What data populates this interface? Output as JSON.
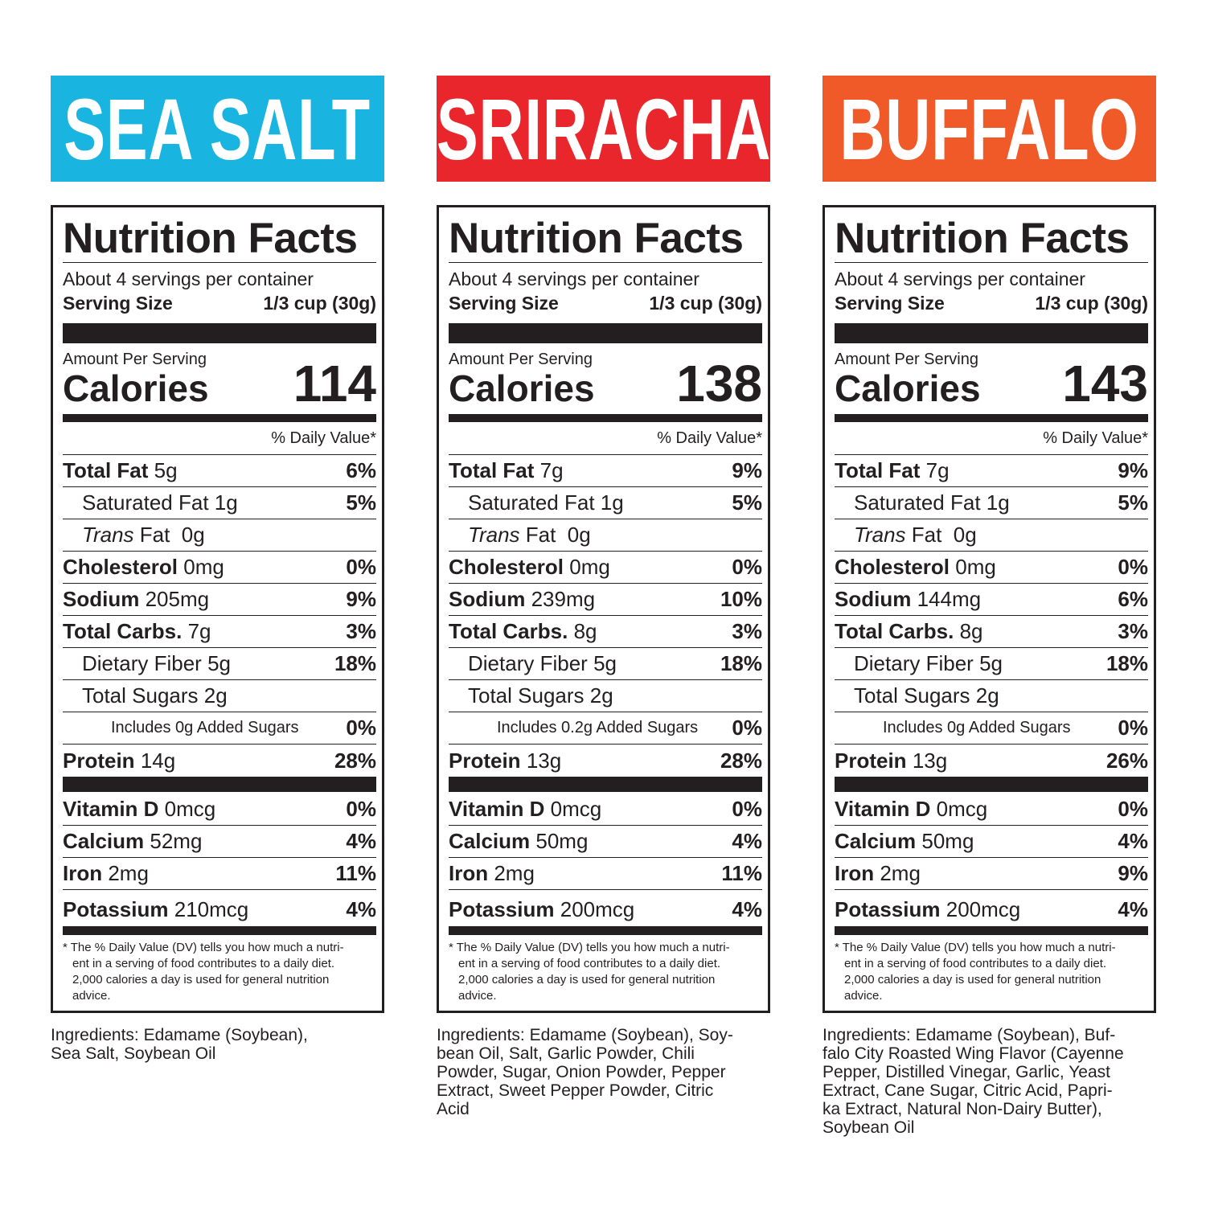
{
  "panels": [
    {
      "header": "SEA SALT",
      "title": "Nutrition Facts",
      "servings": "About 4 servings per container",
      "serving_size": {
        "label": "Serving Size",
        "value": "1/3 cup (30g)"
      },
      "amount_per_serving": "Amount Per Serving",
      "calories": {
        "label": "Calories",
        "value": 114
      },
      "daily_value_header": "% Daily Value*",
      "rows": [
        {
          "name": "Total Fat",
          "amount": "5g",
          "dv": "6%"
        },
        {
          "name": "Saturated Fat",
          "amount": "1g",
          "dv": "5%"
        },
        {
          "italic": "Trans",
          "name": "Fat",
          "amount": "0g"
        },
        {
          "name": "Cholesterol",
          "amount": "0mg",
          "dv": "0%"
        },
        {
          "name": "Sodium",
          "amount": "205mg",
          "dv": "9%"
        },
        {
          "name": "Total Carbs.",
          "amount": "7g",
          "dv": "3%"
        },
        {
          "name": "Dietary Fiber",
          "amount": "5g",
          "dv": "18%"
        },
        {
          "name": "Total Sugars",
          "amount": "2g"
        },
        {
          "name": "Includes 0g Added Sugars",
          "dv": "0%"
        },
        {
          "name": "Protein",
          "amount": "14g",
          "dv": "28%"
        },
        {
          "name": "Vitamin D",
          "amount": "0mcg",
          "dv": "0%"
        },
        {
          "name": "Calcium",
          "amount": "52mg",
          "dv": "4%"
        },
        {
          "name": "Iron",
          "amount": "2mg",
          "dv": "11%"
        },
        {
          "name": "Potassium",
          "amount": "210mcg",
          "dv": "4%"
        }
      ],
      "footnote": [
        "* The % Daily Value (DV) tells you how much a nutri-",
        "ent in a serving of food contributes to a daily diet.",
        "2,000 calories a day is used for general nutrition",
        "advice."
      ],
      "ingredients": [
        "Ingredients: Edamame (Soybean),",
        "Sea Salt, Soybean Oil"
      ]
    },
    {
      "header": "SRIRACHA",
      "title": "Nutrition Facts",
      "servings": "About 4 servings per container",
      "serving_size": {
        "label": "Serving Size",
        "value": "1/3 cup (30g)"
      },
      "amount_per_serving": "Amount Per Serving",
      "calories": {
        "label": "Calories",
        "value": 138
      },
      "daily_value_header": "% Daily Value*",
      "rows": [
        {
          "name": "Total Fat",
          "amount": "7g",
          "dv": "9%"
        },
        {
          "name": "Saturated Fat",
          "amount": "1g",
          "dv": "5%"
        },
        {
          "italic": "Trans",
          "name": "Fat",
          "amount": "0g"
        },
        {
          "name": "Cholesterol",
          "amount": "0mg",
          "dv": "0%"
        },
        {
          "name": "Sodium",
          "amount": "239mg",
          "dv": "10%"
        },
        {
          "name": "Total Carbs.",
          "amount": "8g",
          "dv": "3%"
        },
        {
          "name": "Dietary Fiber",
          "amount": "5g",
          "dv": "18%"
        },
        {
          "name": "Total Sugars",
          "amount": "2g"
        },
        {
          "name": "Includes 0.2g Added Sugars",
          "dv": "0%"
        },
        {
          "name": "Protein",
          "amount": "13g",
          "dv": "28%"
        },
        {
          "name": "Vitamin D",
          "amount": "0mcg",
          "dv": "0%"
        },
        {
          "name": "Calcium",
          "amount": "50mg",
          "dv": "4%"
        },
        {
          "name": "Iron",
          "amount": "2mg",
          "dv": "11%"
        },
        {
          "name": "Potassium",
          "amount": "200mcg",
          "dv": "4%"
        }
      ],
      "footnote": [
        "* The % Daily Value (DV) tells you how much a nutri-",
        "ent in a serving of food contributes to a daily diet.",
        "2,000 calories a day is used for general nutrition",
        "advice."
      ],
      "ingredients": [
        "Ingredients: Edamame (Soybean), Soy-",
        "bean Oil, Salt, Garlic Powder, Chili",
        "Powder, Sugar, Onion Powder, Pepper",
        "Extract, Sweet Pepper Powder, Citric",
        "Acid"
      ]
    },
    {
      "header": "BUFFALO",
      "title": "Nutrition Facts",
      "servings": "About 4 servings per container",
      "serving_size": {
        "label": "Serving Size",
        "value": "1/3 cup (30g)"
      },
      "amount_per_serving": "Amount Per Serving",
      "calories": {
        "label": "Calories",
        "value": 143
      },
      "daily_value_header": "% Daily Value*",
      "rows": [
        {
          "name": "Total Fat",
          "amount": "7g",
          "dv": "9%"
        },
        {
          "name": "Saturated Fat",
          "amount": "1g",
          "dv": "5%"
        },
        {
          "italic": "Trans",
          "name": "Fat",
          "amount": "0g"
        },
        {
          "name": "Cholesterol",
          "amount": "0mg",
          "dv": "0%"
        },
        {
          "name": "Sodium",
          "amount": "144mg",
          "dv": "6%"
        },
        {
          "name": "Total Carbs.",
          "amount": "8g",
          "dv": "3%"
        },
        {
          "name": "Dietary Fiber",
          "amount": "5g",
          "dv": "18%"
        },
        {
          "name": "Total Sugars",
          "amount": "2g"
        },
        {
          "name": "Includes 0g Added Sugars",
          "dv": "0%"
        },
        {
          "name": "Protein",
          "amount": "13g",
          "dv": "26%"
        },
        {
          "name": "Vitamin D",
          "amount": "0mcg",
          "dv": "0%"
        },
        {
          "name": "Calcium",
          "amount": "50mg",
          "dv": "4%"
        },
        {
          "name": "Iron",
          "amount": "2mg",
          "dv": "9%"
        },
        {
          "name": "Potassium",
          "amount": "200mcg",
          "dv": "4%"
        }
      ],
      "footnote": [
        "* The % Daily Value (DV) tells you how much a nutri-",
        "ent in a serving of food contributes to a daily diet.",
        "2,000 calories a day is used for general nutrition",
        "advice."
      ],
      "ingredients": [
        "Ingredients: Edamame (Soybean), Buf-",
        "falo City Roasted Wing Flavor (Cayenne",
        "Pepper, Distilled Vinegar, Garlic, Yeast",
        "Extract, Cane Sugar, Citric Acid, Papri-",
        "ka Extract, Natural Non-Dairy Butter),",
        "Soybean Oil"
      ]
    }
  ]
}
